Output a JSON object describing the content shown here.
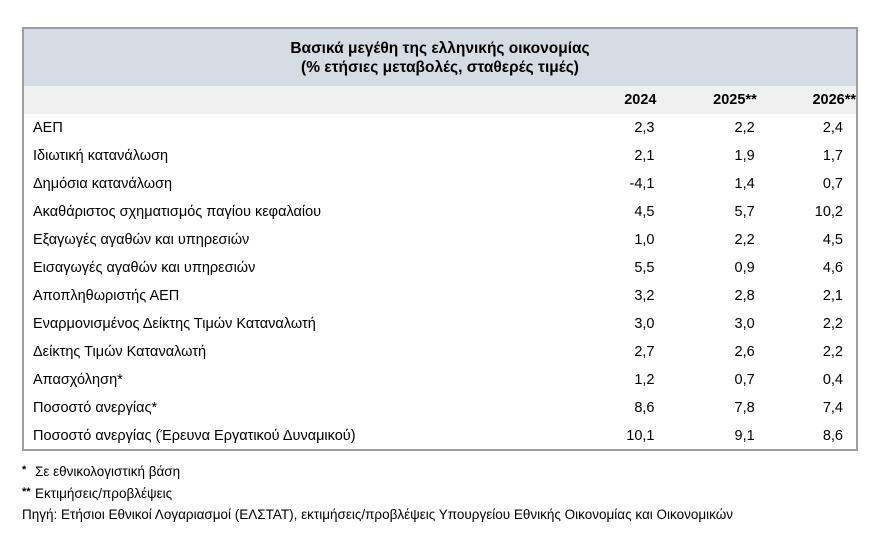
{
  "table": {
    "title_line1": "Βασικά μεγέθη της ελληνικής οικονομίας",
    "title_line2": "(% ετήσιες μεταβολές, σταθερές τιμές)",
    "columns": [
      "2024",
      "2025**",
      "2026**"
    ],
    "rows": [
      {
        "label": "ΑΕΠ",
        "values": [
          "2,3",
          "2,2",
          "2,4"
        ]
      },
      {
        "label": "Ιδιωτική κατανάλωση",
        "values": [
          "2,1",
          "1,9",
          "1,7"
        ]
      },
      {
        "label": "Δημόσια κατανάλωση",
        "values": [
          "-4,1",
          "1,4",
          "0,7"
        ]
      },
      {
        "label": "Ακαθάριστος σχηματισμός παγίου κεφαλαίου",
        "values": [
          "4,5",
          "5,7",
          "10,2"
        ]
      },
      {
        "label": "Εξαγωγές αγαθών και υπηρεσιών",
        "values": [
          "1,0",
          "2,2",
          "4,5"
        ]
      },
      {
        "label": "Εισαγωγές αγαθών και υπηρεσιών",
        "values": [
          "5,5",
          "0,9",
          "4,6"
        ]
      },
      {
        "label": "Αποπληθωριστής ΑΕΠ",
        "values": [
          "3,2",
          "2,8",
          "2,1"
        ]
      },
      {
        "label": "Εναρμονισμένος Δείκτης Τιμών Καταναλωτή",
        "values": [
          "3,0",
          "3,0",
          "2,2"
        ]
      },
      {
        "label": "Δείκτης Τιμών Καταναλωτή",
        "values": [
          "2,7",
          "2,6",
          "2,2"
        ]
      },
      {
        "label": "Απασχόληση*",
        "values": [
          "1,2",
          "0,7",
          "0,4"
        ]
      },
      {
        "label": "Ποσοστό ανεργίας*",
        "values": [
          "8,6",
          "7,8",
          "7,4"
        ]
      },
      {
        "label": "Ποσοστό ανεργίας (Έρευνα Εργατικού Δυναμικού)",
        "values": [
          "10,1",
          "9,1",
          "8,6"
        ]
      }
    ]
  },
  "footnotes": {
    "note1_marker": "*",
    "note1_text": "Σε εθνικολογιστική βάση",
    "note2_marker": "**",
    "note2_text": "Εκτιμήσεις/προβλέψεις",
    "source": "Πηγή: Ετήσιοι Εθνικοί Λογαριασμοί (ΕΛΣΤΑΤ), εκτιμήσεις/προβλέψεις Υπουργείου Εθνικής Οικονομίας και Οικονομικών"
  },
  "colors": {
    "title_band": "#d6dce4",
    "header_band": "#f0f0f1",
    "table_border": "#9a9fa6"
  }
}
